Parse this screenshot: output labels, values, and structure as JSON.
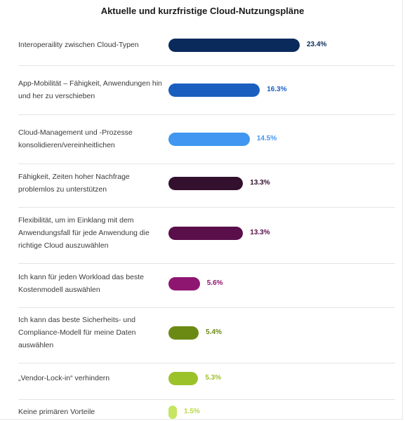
{
  "chart_data": {
    "type": "bar",
    "orientation": "horizontal",
    "title": "Aktuelle und kurzfristige Cloud-Nutzungspläne",
    "categories": [
      "Interoperaility zwischen Cloud-Typen",
      "App-Mobilität – Fähigkeit, Anwendungen hin und her zu verschieben",
      "Cloud-Management und -Prozesse konsolidieren/vereinheitlichen",
      "Fähigkeit, Zeiten hoher Nachfrage problemlos zu unterstützen",
      "Flexibilität, um im Einklang mit dem Anwendungsfall für jede Anwendung die richtige Cloud auszuwählen",
      "Ich kann für jeden Workload das beste Kostenmodell auswählen",
      "Ich kann das beste Sicherheits- und Compliance-Modell für meine Daten auswählen",
      "„Vendor-Lock-in“ verhindern",
      "Keine primären Vorteile"
    ],
    "values": [
      23.4,
      16.3,
      14.5,
      13.3,
      13.3,
      5.6,
      5.4,
      5.3,
      1.5
    ],
    "value_labels": [
      "23.4%",
      "16.3%",
      "14.5%",
      "13.3%",
      "13.3%",
      "5.6%",
      "5.4%",
      "5.3%",
      "1.5%"
    ],
    "bar_colors": [
      "#0a2a5c",
      "#1a5fbf",
      "#4096f0",
      "#33102e",
      "#5a0f4a",
      "#8e1670",
      "#6b8a14",
      "#9cc22a",
      "#c6e560"
    ],
    "label_colors": [
      "#0a2a5c",
      "#1a5fbf",
      "#4096f0",
      "#33102e",
      "#5a0f4a",
      "#8e1670",
      "#6b8a14",
      "#9cc22a",
      "#b9d84c"
    ],
    "grid": false
  }
}
